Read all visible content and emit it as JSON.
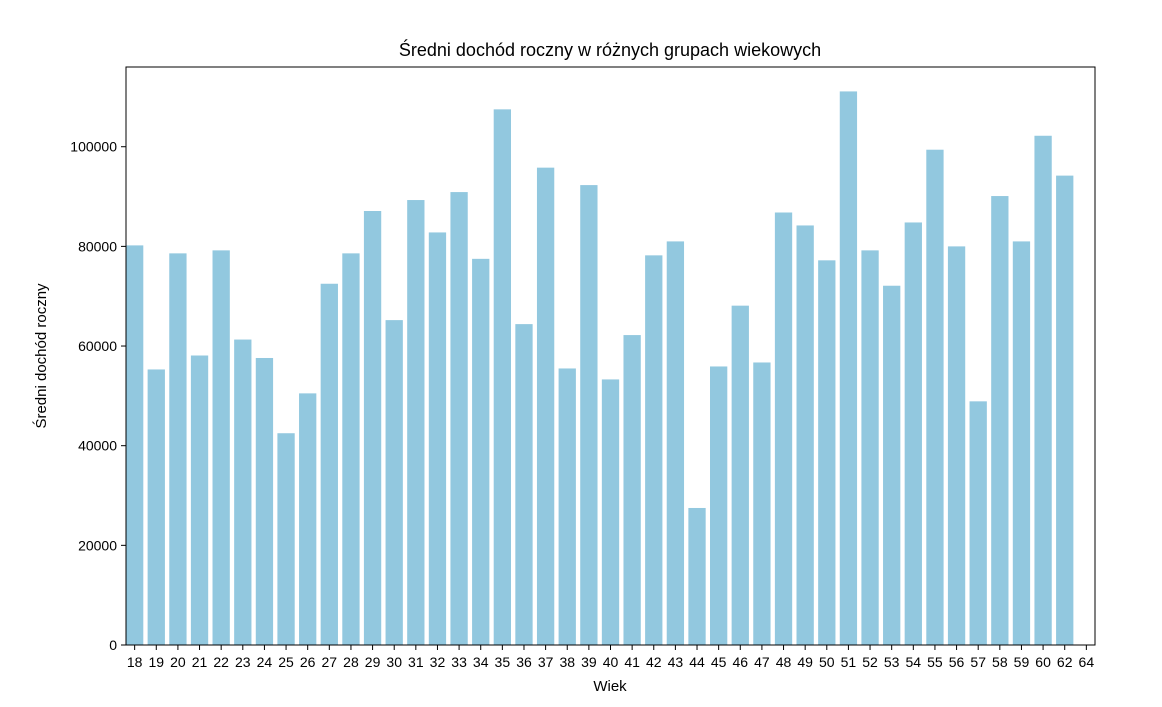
{
  "chart_data": {
    "type": "bar",
    "title": "Średni dochód roczny w różnych grupach wiekowych",
    "xlabel": "Wiek",
    "ylabel": "Średni dochód roczny",
    "categories": [
      "18",
      "19",
      "20",
      "21",
      "22",
      "23",
      "24",
      "25",
      "26",
      "27",
      "28",
      "29",
      "30",
      "31",
      "32",
      "33",
      "34",
      "35",
      "36",
      "37",
      "38",
      "39",
      "40",
      "41",
      "42",
      "43",
      "44",
      "45",
      "46",
      "47",
      "48",
      "49",
      "50",
      "51",
      "52",
      "53",
      "54",
      "55",
      "56",
      "57",
      "58",
      "59",
      "60",
      "62",
      "64"
    ],
    "values": [
      80200,
      55300,
      78600,
      58100,
      79200,
      61300,
      57600,
      42500,
      50500,
      72500,
      78600,
      87100,
      65200,
      89300,
      82800,
      90900,
      77500,
      107500,
      64400,
      95800,
      55500,
      92300,
      53300,
      62200,
      78200,
      81000,
      27500,
      55900,
      68100,
      56700,
      86800,
      84200,
      77200,
      111100,
      79200,
      72100,
      84800,
      99400,
      80000,
      48900,
      90100,
      81000,
      102200,
      94200,
      0
    ],
    "ylim": [
      0,
      116000
    ],
    "yticks": [
      0,
      20000,
      40000,
      60000,
      80000,
      100000
    ],
    "bar_color": "#92c8df",
    "grid": false,
    "legend": "none"
  }
}
